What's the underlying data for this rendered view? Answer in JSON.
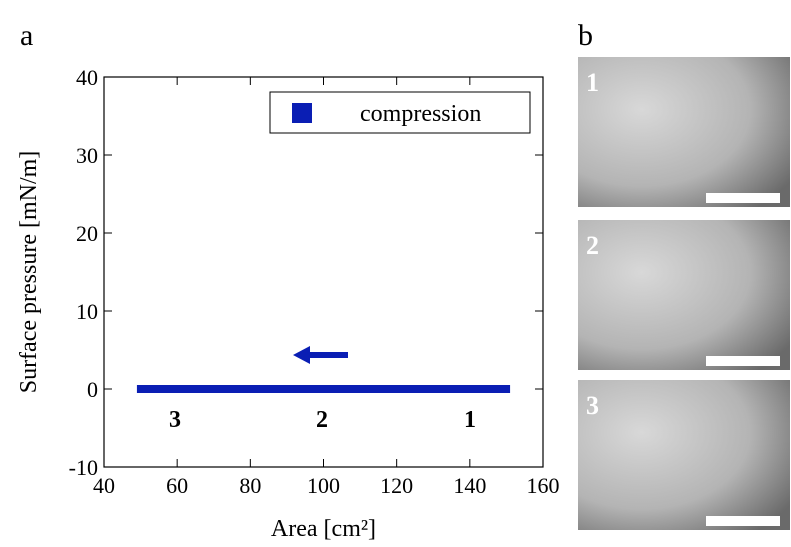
{
  "chart_data": {
    "type": "line",
    "panel_label": "a",
    "x_label": "Area [cm²]",
    "y_label": "Surface pressure [mN/m]",
    "xlim": [
      40,
      160
    ],
    "xticks": [
      40,
      60,
      80,
      100,
      120,
      140,
      160
    ],
    "ylim": [
      -10,
      40
    ],
    "yticks": [
      -10,
      0,
      10,
      20,
      30,
      40
    ],
    "series": [
      {
        "name": "compression",
        "color": "#0a1eb4",
        "x": [
          49,
          151
        ],
        "values": [
          0,
          0
        ]
      }
    ],
    "annotations": [
      "3",
      "2",
      "1"
    ],
    "legend": "upper right"
  },
  "images": {
    "panel_label": "b",
    "labels": [
      "1",
      "2",
      "3"
    ]
  }
}
